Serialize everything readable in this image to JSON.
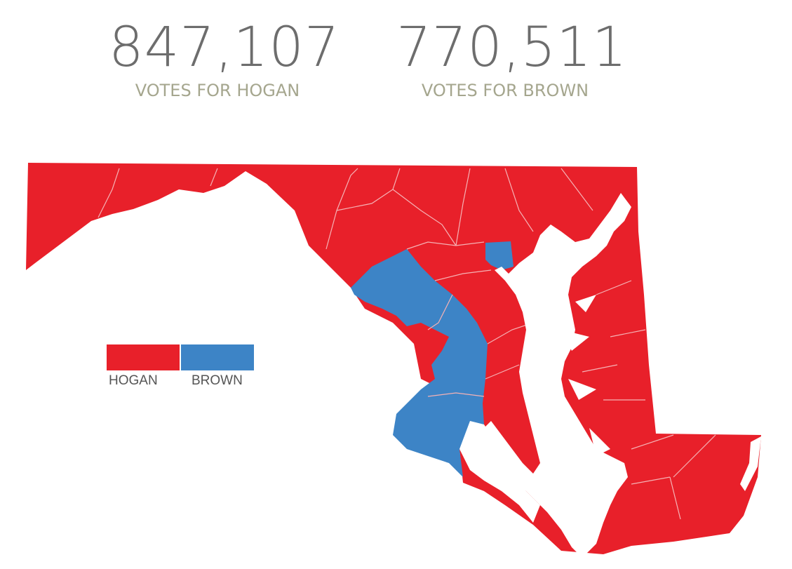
{
  "summary": {
    "hogan": {
      "votes": "847,107",
      "label": "VOTES FOR HOGAN"
    },
    "brown": {
      "votes": "770,511",
      "label": "VOTES FOR BROWN"
    }
  },
  "legend": {
    "items": [
      {
        "label": "HOGAN",
        "color": "#e8202a"
      },
      {
        "label": "BROWN",
        "color": "#3d84c6"
      }
    ]
  },
  "map": {
    "region": "Maryland",
    "colors": {
      "hogan": "#e8202a",
      "brown": "#3d84c6",
      "border": "#f3a3a6",
      "water": "#ffffff"
    },
    "counties_won": {
      "hogan": 19,
      "brown": 5
    }
  }
}
